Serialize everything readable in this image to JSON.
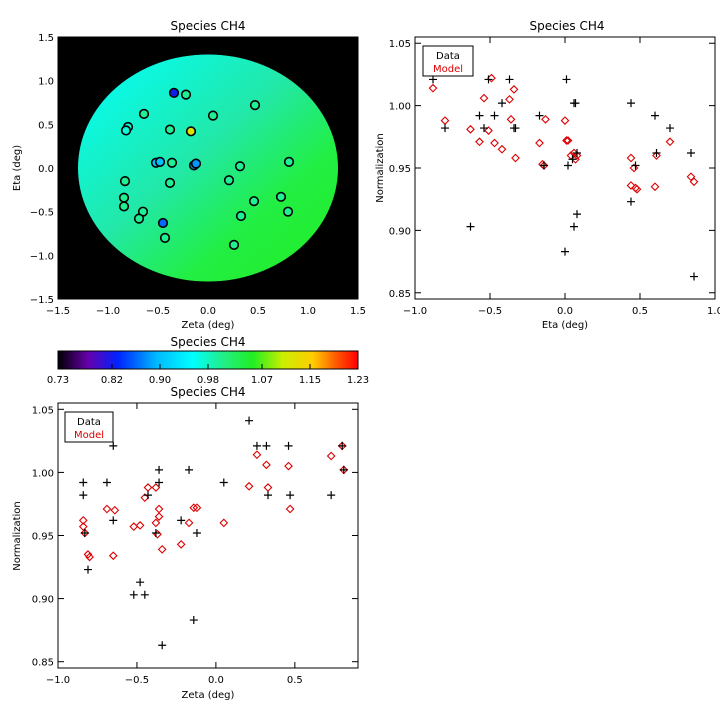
{
  "chart_data": [
    {
      "id": "map",
      "type": "scatter",
      "title": "Species CH4",
      "xlabel": "Zeta (deg)",
      "ylabel": "Eta (deg)",
      "xlim": [
        -1.5,
        1.5
      ],
      "ylim": [
        -1.5,
        1.5
      ],
      "xticks": [
        "−1.5",
        "−1.0",
        "−0.5",
        "0.0",
        "0.5",
        "1.0",
        "1.5"
      ],
      "yticks": [
        "−1.5",
        "−1.0",
        "−0.5",
        "0.0",
        "0.5",
        "1.0",
        "1.5"
      ],
      "field_radius_deg": 1.3,
      "colors": {
        "outside": "#000000",
        "gradient_start": "#00ffff",
        "gradient_end": "#22ee22"
      },
      "points": [
        {
          "x": -0.34,
          "y": 0.86,
          "v": 0.82
        },
        {
          "x": -0.22,
          "y": 0.84,
          "v": 1.0
        },
        {
          "x": -0.64,
          "y": 0.62,
          "v": 1.0
        },
        {
          "x": -0.8,
          "y": 0.47,
          "v": 0.97
        },
        {
          "x": -0.82,
          "y": 0.43,
          "v": 0.97
        },
        {
          "x": -0.38,
          "y": 0.44,
          "v": 1.0
        },
        {
          "x": -0.17,
          "y": 0.42,
          "v": 1.12
        },
        {
          "x": 0.05,
          "y": 0.6,
          "v": 1.0
        },
        {
          "x": 0.47,
          "y": 0.72,
          "v": 1.0
        },
        {
          "x": -0.52,
          "y": 0.06,
          "v": 0.9
        },
        {
          "x": -0.48,
          "y": 0.07,
          "v": 0.9
        },
        {
          "x": -0.36,
          "y": 0.06,
          "v": 1.0
        },
        {
          "x": -0.14,
          "y": 0.03,
          "v": 0.88
        },
        {
          "x": -0.12,
          "y": 0.05,
          "v": 0.88
        },
        {
          "x": 0.32,
          "y": 0.02,
          "v": 1.0
        },
        {
          "x": 0.81,
          "y": 0.07,
          "v": 1.0
        },
        {
          "x": 0.21,
          "y": -0.14,
          "v": 1.0
        },
        {
          "x": -0.83,
          "y": -0.15,
          "v": 1.0
        },
        {
          "x": -0.38,
          "y": -0.17,
          "v": 1.0
        },
        {
          "x": -0.84,
          "y": -0.34,
          "v": 1.0
        },
        {
          "x": -0.84,
          "y": -0.44,
          "v": 1.0
        },
        {
          "x": -0.65,
          "y": -0.5,
          "v": 1.0
        },
        {
          "x": -0.69,
          "y": -0.58,
          "v": 1.0
        },
        {
          "x": 0.46,
          "y": -0.38,
          "v": 1.0
        },
        {
          "x": 0.73,
          "y": -0.33,
          "v": 1.0
        },
        {
          "x": 0.8,
          "y": -0.5,
          "v": 1.0
        },
        {
          "x": 0.33,
          "y": -0.55,
          "v": 1.0
        },
        {
          "x": -0.45,
          "y": -0.63,
          "v": 0.86
        },
        {
          "x": -0.43,
          "y": -0.8,
          "v": 1.0
        },
        {
          "x": 0.26,
          "y": -0.88,
          "v": 1.0
        }
      ]
    },
    {
      "id": "colorbar",
      "type": "heatmap",
      "title": "Species CH4",
      "range": [
        0.73,
        1.23
      ],
      "ticks": [
        "0.73",
        "0.82",
        "0.90",
        "0.98",
        "1.07",
        "1.15",
        "1.23"
      ]
    },
    {
      "id": "eta",
      "type": "scatter",
      "title": "Species CH4",
      "xlabel": "Eta (deg)",
      "ylabel": "Normalization",
      "xlim": [
        -1.0,
        1.0
      ],
      "ylim": [
        0.845,
        1.055
      ],
      "xticks": [
        "−1.0",
        "−0.5",
        "0.0",
        "0.5",
        "1.0"
      ],
      "yticks": [
        "0.85",
        "0.90",
        "0.95",
        "1.00",
        "1.05"
      ],
      "legend": [
        "Data",
        "Model"
      ],
      "series_colors": [
        "#000000",
        "#dd0000"
      ],
      "data_x": [
        -0.88,
        -0.8,
        -0.57,
        -0.54,
        -0.51,
        -0.42,
        -0.37,
        -0.34,
        -0.17,
        -0.14,
        0.0,
        0.01,
        0.02,
        0.06,
        0.06,
        0.07,
        0.08,
        0.44,
        0.44,
        0.47,
        0.6,
        0.61,
        0.7,
        0.84,
        0.86,
        -0.63,
        -0.33,
        -0.47,
        0.08,
        0.05
      ],
      "data_y": [
        1.021,
        0.982,
        0.992,
        0.982,
        1.021,
        1.002,
        1.021,
        0.982,
        0.992,
        0.952,
        0.883,
        1.021,
        0.952,
        0.903,
        1.002,
        1.002,
        0.913,
        1.002,
        0.923,
        0.952,
        0.992,
        0.962,
        0.982,
        0.962,
        0.863,
        0.903,
        0.982,
        0.992,
        0.962,
        0.957
      ],
      "model_x": [
        -0.88,
        -0.8,
        -0.63,
        -0.57,
        -0.54,
        -0.51,
        -0.49,
        -0.47,
        -0.42,
        -0.37,
        -0.36,
        -0.34,
        -0.33,
        -0.17,
        -0.15,
        -0.14,
        -0.13,
        0.0,
        0.01,
        0.02,
        0.04,
        0.06,
        0.07,
        0.08,
        0.44,
        0.44,
        0.46,
        0.47,
        0.48,
        0.6,
        0.61,
        0.7,
        0.84,
        0.86
      ],
      "model_y": [
        1.014,
        0.988,
        0.981,
        0.971,
        1.006,
        0.98,
        1.022,
        0.97,
        0.965,
        1.005,
        0.989,
        1.013,
        0.958,
        0.97,
        0.953,
        0.952,
        0.989,
        0.988,
        0.972,
        0.972,
        0.96,
        0.962,
        0.957,
        0.96,
        0.958,
        0.936,
        0.95,
        0.934,
        0.933,
        0.935,
        0.96,
        0.971,
        0.943,
        0.939
      ]
    },
    {
      "id": "zeta",
      "type": "scatter",
      "title": "Species CH4",
      "xlabel": "Zeta (deg)",
      "ylabel": "Normalization",
      "xlim": [
        -1.0,
        0.9
      ],
      "ylim": [
        0.845,
        1.055
      ],
      "xticks": [
        "−1.0",
        "−0.5",
        "0.0",
        "0.5"
      ],
      "yticks": [
        "0.85",
        "0.90",
        "0.95",
        "1.00",
        "1.05"
      ],
      "legend": [
        "Data",
        "Model"
      ],
      "series_colors": [
        "#000000",
        "#dd0000"
      ],
      "data_x": [
        -0.84,
        -0.84,
        -0.81,
        -0.69,
        -0.65,
        -0.65,
        -0.52,
        -0.48,
        -0.45,
        -0.38,
        -0.36,
        -0.36,
        -0.34,
        -0.22,
        -0.17,
        -0.14,
        -0.12,
        0.05,
        0.21,
        0.26,
        0.32,
        0.33,
        0.46,
        0.47,
        0.73,
        0.8,
        0.81,
        -0.83,
        -0.43
      ],
      "data_y": [
        0.992,
        0.982,
        0.923,
        0.992,
        1.021,
        0.962,
        0.903,
        0.913,
        0.903,
        0.952,
        1.002,
        0.992,
        0.863,
        0.962,
        1.002,
        0.883,
        0.952,
        0.992,
        1.041,
        1.021,
        1.021,
        0.982,
        1.021,
        0.982,
        0.982,
        1.021,
        1.002,
        0.952,
        0.982
      ],
      "model_x": [
        -0.84,
        -0.84,
        -0.83,
        -0.81,
        -0.8,
        -0.69,
        -0.65,
        -0.64,
        -0.52,
        -0.48,
        -0.45,
        -0.43,
        -0.38,
        -0.37,
        -0.36,
        -0.34,
        -0.22,
        -0.17,
        -0.14,
        -0.12,
        0.05,
        0.21,
        0.26,
        0.32,
        0.33,
        0.46,
        0.47,
        0.73,
        0.8,
        0.81,
        -0.36,
        -0.38
      ],
      "model_y": [
        0.962,
        0.957,
        0.952,
        0.935,
        0.933,
        0.971,
        0.934,
        0.97,
        0.957,
        0.958,
        0.98,
        0.988,
        0.96,
        0.951,
        0.971,
        0.939,
        0.943,
        0.96,
        0.972,
        0.972,
        0.96,
        0.989,
        1.014,
        1.006,
        0.988,
        1.005,
        0.971,
        1.013,
        1.021,
        1.002,
        0.965,
        0.988
      ]
    }
  ]
}
